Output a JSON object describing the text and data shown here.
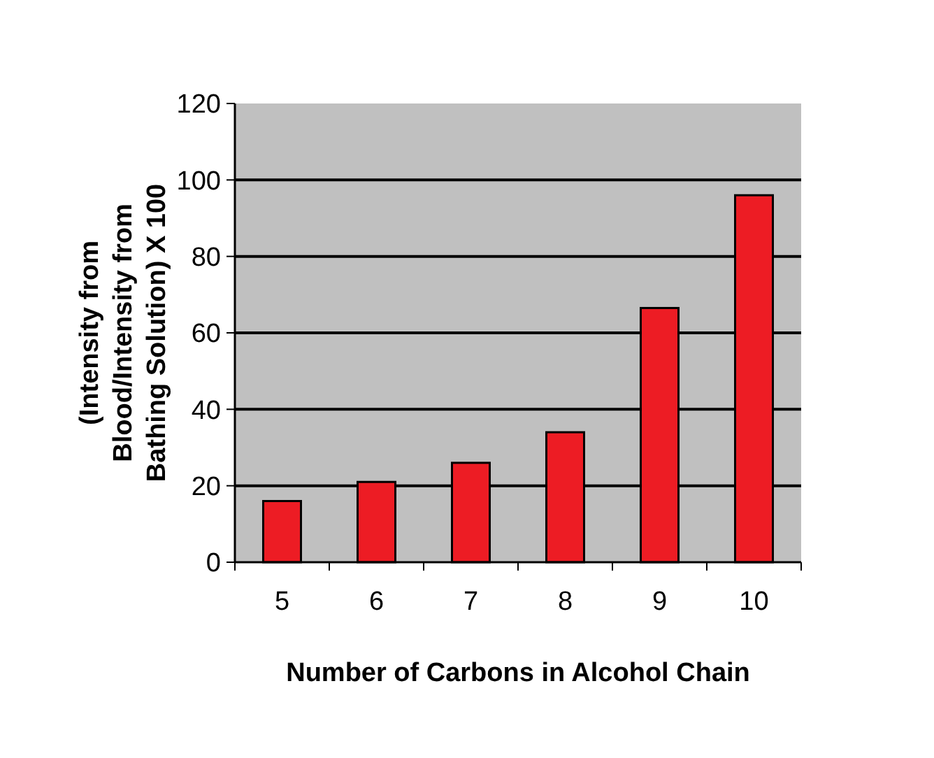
{
  "chart_data": {
    "type": "bar",
    "xlabel": "Number of Carbons in Alcohol Chain",
    "ylabel": "(Intensity from Blood/Intensity from Bathing Solution) X 100",
    "categories": [
      "5",
      "6",
      "7",
      "8",
      "9",
      "10"
    ],
    "values": [
      16,
      21,
      26,
      34,
      66.5,
      96
    ],
    "color": "#ed1c24",
    "ylim": [
      0,
      120
    ],
    "yticks": [
      0,
      20,
      40,
      60,
      80,
      100,
      120
    ],
    "grid": "y"
  }
}
